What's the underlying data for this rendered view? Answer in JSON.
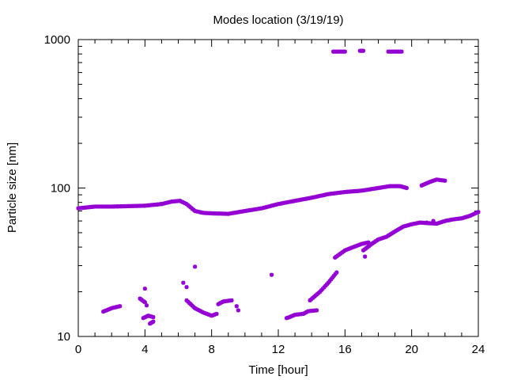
{
  "chart_data": {
    "type": "scatter",
    "title": "Modes location (3/19/19)",
    "xlabel": "Time [hour]",
    "ylabel": "Particle size [nm]",
    "xlim": [
      0,
      24
    ],
    "ylim": [
      10,
      1000
    ],
    "yscale": "log",
    "xticks": [
      0,
      4,
      8,
      12,
      16,
      20,
      24
    ],
    "yticks": [
      10,
      100,
      1000
    ],
    "grid": false,
    "legend": "none",
    "marker_color": "#9400d3",
    "series": [
      {
        "segments": [
          [
            [
              0.0,
              73
            ],
            [
              1.0,
              75
            ],
            [
              2.0,
              75
            ],
            [
              3.0,
              75.5
            ],
            [
              4.0,
              76
            ],
            [
              5.0,
              78
            ],
            [
              5.6,
              81
            ],
            [
              6.1,
              82
            ],
            [
              6.5,
              78
            ],
            [
              7.0,
              70
            ],
            [
              7.5,
              68
            ],
            [
              8.0,
              67.5
            ],
            [
              9.0,
              67
            ],
            [
              10.0,
              70
            ],
            [
              11.0,
              73
            ],
            [
              12.0,
              78
            ],
            [
              13.0,
              82
            ],
            [
              14.0,
              86
            ],
            [
              15.0,
              91
            ],
            [
              16.0,
              94
            ],
            [
              17.0,
              96
            ],
            [
              18.0,
              100
            ],
            [
              18.7,
              103
            ],
            [
              19.3,
              103
            ],
            [
              19.7,
              100
            ]
          ],
          [
            [
              20.6,
              104
            ],
            [
              21.1,
              110
            ],
            [
              21.5,
              114
            ],
            [
              22.0,
              112
            ]
          ],
          [
            [
              15.3,
              830
            ],
            [
              16.0,
              830
            ]
          ],
          [
            [
              16.9,
              840
            ],
            [
              17.1,
              840
            ]
          ],
          [
            [
              18.6,
              830
            ],
            [
              19.4,
              830
            ]
          ],
          [
            [
              1.5,
              14.7
            ],
            [
              2.0,
              15.5
            ],
            [
              2.5,
              16
            ]
          ],
          [
            [
              3.7,
              18
            ],
            [
              4.0,
              17
            ],
            [
              4.1,
              16.2
            ]
          ],
          [
            [
              3.9,
              13.3
            ],
            [
              4.2,
              13.8
            ],
            [
              4.5,
              13.5
            ]
          ],
          [
            [
              4.3,
              12.2
            ],
            [
              4.5,
              12.6
            ]
          ],
          [
            [
              6.5,
              17.5
            ],
            [
              7.0,
              15.5
            ],
            [
              7.5,
              14.5
            ],
            [
              8.0,
              13.8
            ],
            [
              8.3,
              14.2
            ]
          ],
          [
            [
              8.4,
              16.5
            ],
            [
              8.7,
              17.2
            ],
            [
              9.2,
              17.5
            ]
          ],
          [
            [
              12.6,
              13.4
            ],
            [
              13.0,
              14
            ],
            [
              13.5,
              14.2
            ],
            [
              13.8,
              14.8
            ],
            [
              14.3,
              15
            ]
          ],
          [
            [
              13.9,
              17.5
            ],
            [
              14.5,
              20
            ],
            [
              15.0,
              23
            ],
            [
              15.5,
              27
            ]
          ],
          [
            [
              15.4,
              34
            ],
            [
              16.0,
              38
            ],
            [
              16.5,
              40
            ],
            [
              17.0,
              42
            ],
            [
              17.4,
              43
            ]
          ],
          [
            [
              17.1,
              38
            ],
            [
              17.6,
              42
            ],
            [
              18.0,
              45
            ],
            [
              18.5,
              47
            ],
            [
              19.0,
              51
            ],
            [
              19.5,
              55
            ],
            [
              20.0,
              57
            ],
            [
              20.5,
              58.5
            ],
            [
              21.0,
              58
            ],
            [
              21.5,
              57.5
            ],
            [
              22.0,
              60
            ],
            [
              22.5,
              61.5
            ],
            [
              23.0,
              62.5
            ],
            [
              23.5,
              65
            ],
            [
              24.0,
              69
            ]
          ]
        ],
        "points": [
          [
            4.0,
            21
          ],
          [
            6.3,
            23
          ],
          [
            6.5,
            21.5
          ],
          [
            7.0,
            29.5
          ],
          [
            11.6,
            26
          ],
          [
            9.5,
            16
          ],
          [
            9.6,
            15
          ],
          [
            17.2,
            34.5
          ],
          [
            20.9,
            58.5
          ],
          [
            21.3,
            60
          ],
          [
            12.5,
            13.3
          ]
        ]
      }
    ]
  }
}
